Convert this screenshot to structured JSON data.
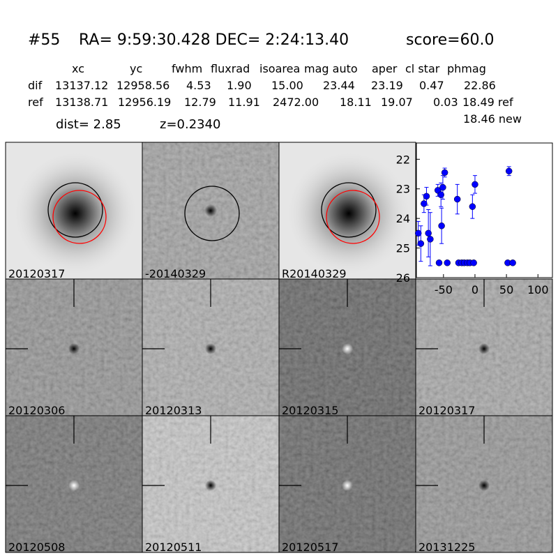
{
  "header": {
    "id": "#55",
    "coords": "RA= 9:59:30.428 DEC= 2:24:13.40",
    "score": "score=60.0"
  },
  "table": {
    "columns": [
      "xc",
      "yc",
      "fwhm",
      "fluxrad",
      "isoarea",
      "mag auto",
      "aper",
      "cl star",
      "phmag"
    ],
    "rows": [
      [
        "dif",
        "13137.12",
        "12958.56",
        "4.53",
        "1.90",
        "15.00",
        "23.44",
        "23.19",
        "0.47",
        "22.86"
      ],
      [
        "ref",
        "13138.71",
        "12956.19",
        "12.79",
        "11.91",
        "2472.00",
        "18.11",
        "19.07",
        "0.03",
        "18.49 ref"
      ]
    ],
    "extra": "18.46 new"
  },
  "summary": {
    "dist": "dist=  2.85",
    "z": "z=0.2340"
  },
  "panels": [
    {
      "label": "20120317"
    },
    {
      "label": "-20140329"
    },
    {
      "label": "R20140329"
    },
    {
      "label": "20120306"
    },
    {
      "label": "20120313"
    },
    {
      "label": "20120315"
    },
    {
      "label": "20120317",
      "label_color": "#ff0000"
    },
    {
      "label": "20120508"
    },
    {
      "label": "20120511"
    },
    {
      "label": "20120517"
    },
    {
      "label": "20131225"
    }
  ],
  "chart_data": {
    "type": "scatter",
    "xlim": [
      -93,
      123
    ],
    "ylim": [
      26,
      21.45
    ],
    "xticks": [
      -50,
      0,
      50,
      100
    ],
    "yticks": [
      22,
      23,
      24,
      25,
      26
    ],
    "series": [
      {
        "color": "#0000ff",
        "x": [
          -90,
          -86,
          -81,
          -77,
          -74,
          -71,
          -59,
          -54,
          -53,
          -51,
          -48,
          -28,
          -4,
          0,
          54
        ],
        "values": [
          24.5,
          24.85,
          23.5,
          23.25,
          24.5,
          24.7,
          23.05,
          23.2,
          24.25,
          22.95,
          22.45,
          23.35,
          23.6,
          22.85,
          22.4
        ],
        "errors": [
          0.4,
          0.6,
          0.3,
          0.3,
          0.8,
          0.9,
          0.2,
          0.4,
          0.6,
          0.4,
          0.15,
          0.5,
          0.4,
          0.3,
          0.15
        ]
      },
      {
        "color": "#0000ff",
        "x": [
          -57,
          -44,
          -26,
          -21,
          -17,
          -12,
          -8,
          -2,
          52,
          60
        ],
        "values": [
          25.5,
          25.5,
          25.5,
          25.5,
          25.5,
          25.5,
          25.5,
          25.5,
          25.5,
          25.5
        ]
      }
    ]
  }
}
